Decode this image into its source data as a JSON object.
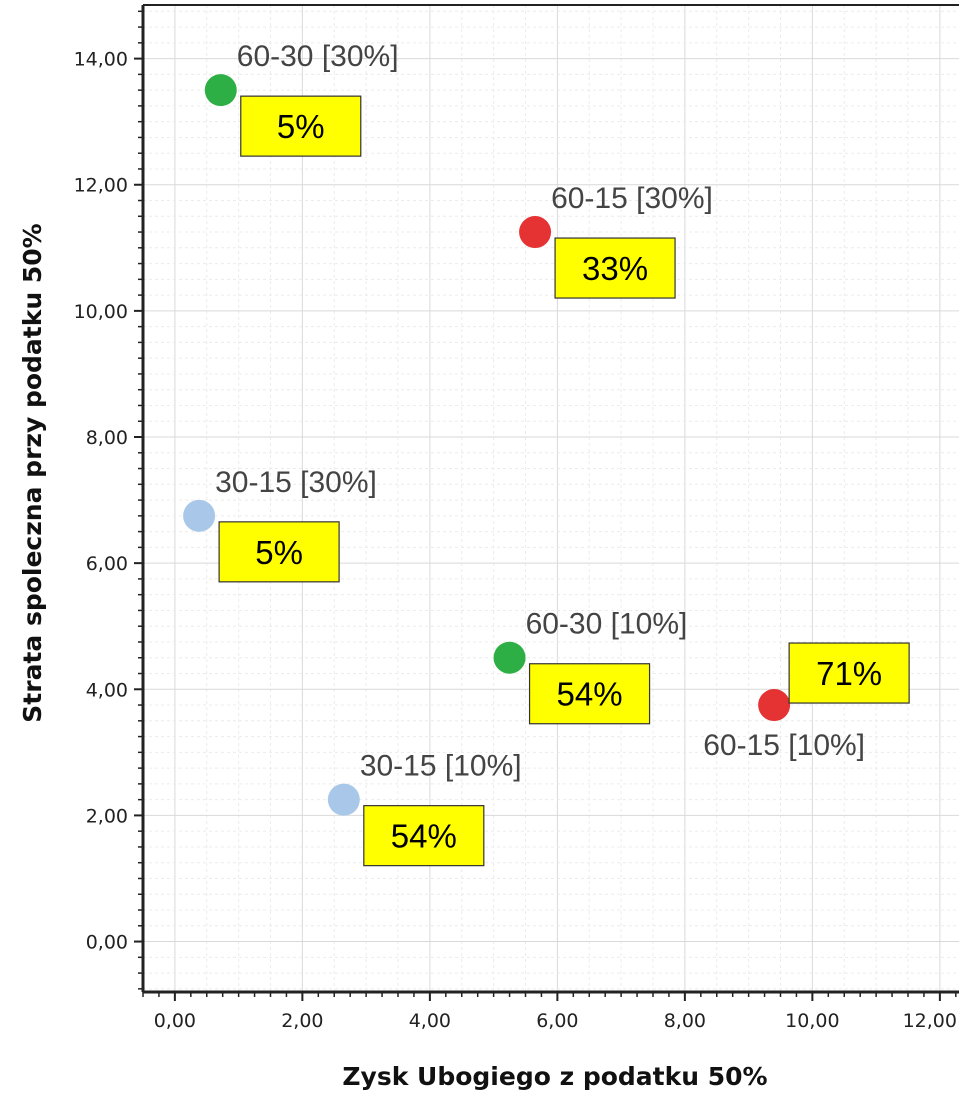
{
  "chart_data": {
    "type": "scatter",
    "xlabel": "Zysk Ubogiego z podatku 50%",
    "ylabel": "Strata spoleczna przy podatku 50%",
    "xlim": [
      -0.5,
      12.3
    ],
    "ylim": [
      -0.8,
      14.85
    ],
    "x_ticks": [
      "0,00",
      "2,00",
      "4,00",
      "6,00",
      "8,00",
      "10,00",
      "12,00"
    ],
    "x_tick_values": [
      0,
      2,
      4,
      6,
      8,
      10,
      12
    ],
    "y_ticks": [
      "0,00",
      "2,00",
      "4,00",
      "6,00",
      "8,00",
      "10,00",
      "12,00",
      "14,00"
    ],
    "y_tick_values": [
      0,
      2,
      4,
      6,
      8,
      10,
      12,
      14
    ],
    "grid": true,
    "colors": {
      "green": "#2eaf45",
      "red": "#e53232",
      "light_blue": "#a9c8e9",
      "callout_fill": "#ffff00"
    },
    "points": [
      {
        "label": "60-30 [30%]",
        "x": 0.72,
        "y": 13.5,
        "color": "green",
        "percent": "5%"
      },
      {
        "label": "60-15 [30%]",
        "x": 5.65,
        "y": 11.25,
        "color": "red",
        "percent": "33%"
      },
      {
        "label": "30-15 [30%]",
        "x": 0.38,
        "y": 6.75,
        "color": "light_blue",
        "percent": "5%"
      },
      {
        "label": "60-30 [10%]",
        "x": 5.25,
        "y": 4.5,
        "color": "green",
        "percent": "54%"
      },
      {
        "label": "60-15 [10%]",
        "x": 9.4,
        "y": 3.75,
        "color": "red",
        "percent": "71%"
      },
      {
        "label": "30-15 [10%]",
        "x": 2.65,
        "y": 2.25,
        "color": "light_blue",
        "percent": "54%"
      }
    ]
  }
}
